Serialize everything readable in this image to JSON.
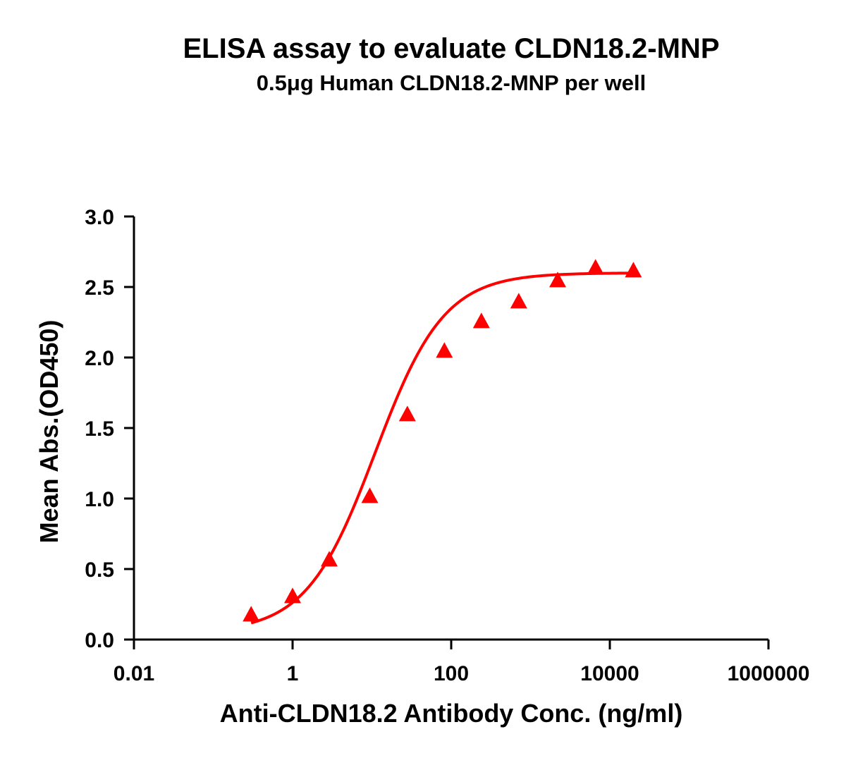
{
  "chart_data": {
    "type": "scatter",
    "title": "ELISA assay to evaluate CLDN18.2-MNP",
    "subtitle": "0.5μg Human CLDN18.2-MNP per well",
    "xlabel": "Anti-CLDN18.2 Antibody Conc. (ng/ml)",
    "ylabel": "Mean Abs.(OD450)",
    "x_scale": "log",
    "xlim": [
      0.01,
      1000000
    ],
    "ylim": [
      0,
      3.0
    ],
    "x_ticks": [
      0.01,
      1,
      100,
      10000,
      1000000
    ],
    "x_tick_labels": [
      "0.01",
      "1",
      "100",
      "10000",
      "1000000"
    ],
    "y_ticks": [
      0,
      0.5,
      1.0,
      1.5,
      2.0,
      2.5,
      3.0
    ],
    "y_tick_labels": [
      "0.0",
      "0.5",
      "1.0",
      "1.5",
      "2.0",
      "2.5",
      "3.0"
    ],
    "grid": false,
    "series": [
      {
        "marker": "triangle",
        "color": "#ff0000",
        "fit": "sigmoidal",
        "x": [
          0.3,
          1.0,
          2.9,
          9.4,
          28,
          82,
          240,
          710,
          2200,
          6600,
          19800
        ],
        "y": [
          0.17,
          0.3,
          0.56,
          1.01,
          1.59,
          2.04,
          2.25,
          2.39,
          2.54,
          2.63,
          2.61
        ]
      }
    ]
  }
}
